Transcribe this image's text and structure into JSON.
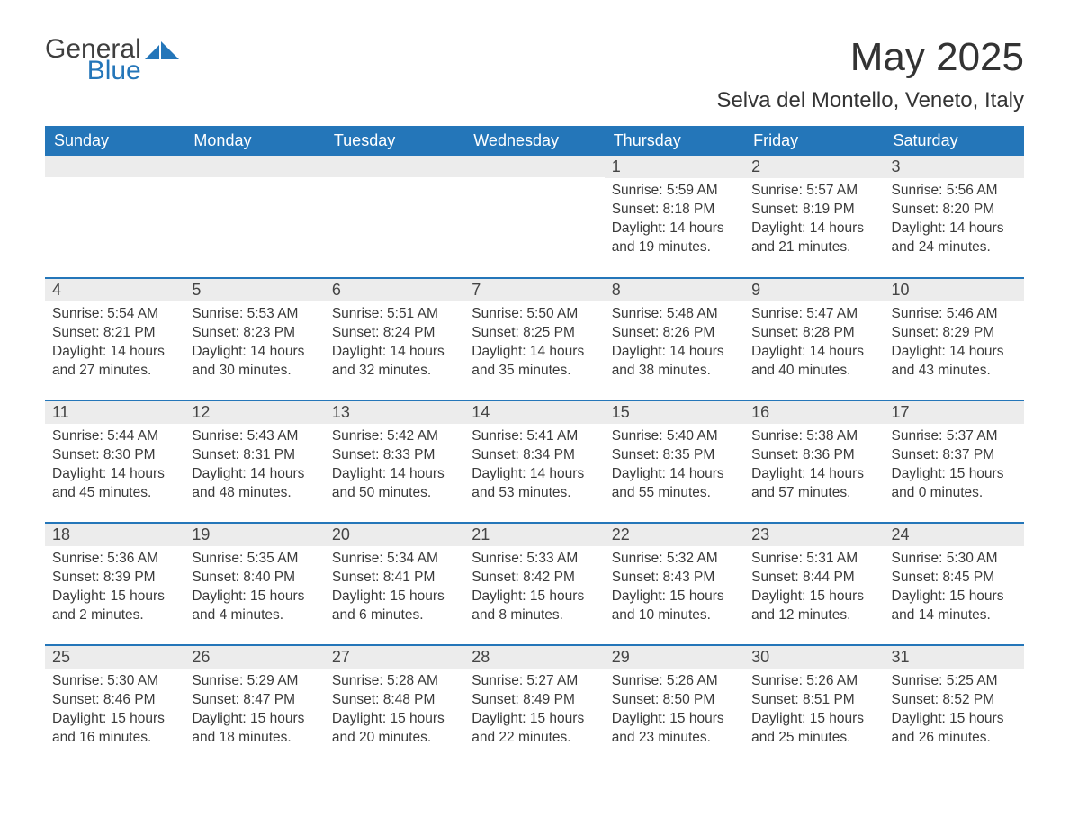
{
  "brand": {
    "text_top": "General",
    "text_bottom": "Blue",
    "mark_color": "#2476b9",
    "top_color": "#3f3f3f",
    "bottom_color": "#2476b9"
  },
  "title": "May 2025",
  "location": "Selva del Montello, Veneto, Italy",
  "colors": {
    "header_bg": "#2476b9",
    "header_fg": "#ffffff",
    "daynum_bg": "#ececec",
    "rule": "#2476b9",
    "body_text": "#3a3a3a"
  },
  "weekdays": [
    "Sunday",
    "Monday",
    "Tuesday",
    "Wednesday",
    "Thursday",
    "Friday",
    "Saturday"
  ],
  "weeks": [
    [
      {
        "n": "",
        "sr": "",
        "ss": "",
        "dl": ""
      },
      {
        "n": "",
        "sr": "",
        "ss": "",
        "dl": ""
      },
      {
        "n": "",
        "sr": "",
        "ss": "",
        "dl": ""
      },
      {
        "n": "",
        "sr": "",
        "ss": "",
        "dl": ""
      },
      {
        "n": "1",
        "sr": "Sunrise: 5:59 AM",
        "ss": "Sunset: 8:18 PM",
        "dl": "Daylight: 14 hours and 19 minutes."
      },
      {
        "n": "2",
        "sr": "Sunrise: 5:57 AM",
        "ss": "Sunset: 8:19 PM",
        "dl": "Daylight: 14 hours and 21 minutes."
      },
      {
        "n": "3",
        "sr": "Sunrise: 5:56 AM",
        "ss": "Sunset: 8:20 PM",
        "dl": "Daylight: 14 hours and 24 minutes."
      }
    ],
    [
      {
        "n": "4",
        "sr": "Sunrise: 5:54 AM",
        "ss": "Sunset: 8:21 PM",
        "dl": "Daylight: 14 hours and 27 minutes."
      },
      {
        "n": "5",
        "sr": "Sunrise: 5:53 AM",
        "ss": "Sunset: 8:23 PM",
        "dl": "Daylight: 14 hours and 30 minutes."
      },
      {
        "n": "6",
        "sr": "Sunrise: 5:51 AM",
        "ss": "Sunset: 8:24 PM",
        "dl": "Daylight: 14 hours and 32 minutes."
      },
      {
        "n": "7",
        "sr": "Sunrise: 5:50 AM",
        "ss": "Sunset: 8:25 PM",
        "dl": "Daylight: 14 hours and 35 minutes."
      },
      {
        "n": "8",
        "sr": "Sunrise: 5:48 AM",
        "ss": "Sunset: 8:26 PM",
        "dl": "Daylight: 14 hours and 38 minutes."
      },
      {
        "n": "9",
        "sr": "Sunrise: 5:47 AM",
        "ss": "Sunset: 8:28 PM",
        "dl": "Daylight: 14 hours and 40 minutes."
      },
      {
        "n": "10",
        "sr": "Sunrise: 5:46 AM",
        "ss": "Sunset: 8:29 PM",
        "dl": "Daylight: 14 hours and 43 minutes."
      }
    ],
    [
      {
        "n": "11",
        "sr": "Sunrise: 5:44 AM",
        "ss": "Sunset: 8:30 PM",
        "dl": "Daylight: 14 hours and 45 minutes."
      },
      {
        "n": "12",
        "sr": "Sunrise: 5:43 AM",
        "ss": "Sunset: 8:31 PM",
        "dl": "Daylight: 14 hours and 48 minutes."
      },
      {
        "n": "13",
        "sr": "Sunrise: 5:42 AM",
        "ss": "Sunset: 8:33 PM",
        "dl": "Daylight: 14 hours and 50 minutes."
      },
      {
        "n": "14",
        "sr": "Sunrise: 5:41 AM",
        "ss": "Sunset: 8:34 PM",
        "dl": "Daylight: 14 hours and 53 minutes."
      },
      {
        "n": "15",
        "sr": "Sunrise: 5:40 AM",
        "ss": "Sunset: 8:35 PM",
        "dl": "Daylight: 14 hours and 55 minutes."
      },
      {
        "n": "16",
        "sr": "Sunrise: 5:38 AM",
        "ss": "Sunset: 8:36 PM",
        "dl": "Daylight: 14 hours and 57 minutes."
      },
      {
        "n": "17",
        "sr": "Sunrise: 5:37 AM",
        "ss": "Sunset: 8:37 PM",
        "dl": "Daylight: 15 hours and 0 minutes."
      }
    ],
    [
      {
        "n": "18",
        "sr": "Sunrise: 5:36 AM",
        "ss": "Sunset: 8:39 PM",
        "dl": "Daylight: 15 hours and 2 minutes."
      },
      {
        "n": "19",
        "sr": "Sunrise: 5:35 AM",
        "ss": "Sunset: 8:40 PM",
        "dl": "Daylight: 15 hours and 4 minutes."
      },
      {
        "n": "20",
        "sr": "Sunrise: 5:34 AM",
        "ss": "Sunset: 8:41 PM",
        "dl": "Daylight: 15 hours and 6 minutes."
      },
      {
        "n": "21",
        "sr": "Sunrise: 5:33 AM",
        "ss": "Sunset: 8:42 PM",
        "dl": "Daylight: 15 hours and 8 minutes."
      },
      {
        "n": "22",
        "sr": "Sunrise: 5:32 AM",
        "ss": "Sunset: 8:43 PM",
        "dl": "Daylight: 15 hours and 10 minutes."
      },
      {
        "n": "23",
        "sr": "Sunrise: 5:31 AM",
        "ss": "Sunset: 8:44 PM",
        "dl": "Daylight: 15 hours and 12 minutes."
      },
      {
        "n": "24",
        "sr": "Sunrise: 5:30 AM",
        "ss": "Sunset: 8:45 PM",
        "dl": "Daylight: 15 hours and 14 minutes."
      }
    ],
    [
      {
        "n": "25",
        "sr": "Sunrise: 5:30 AM",
        "ss": "Sunset: 8:46 PM",
        "dl": "Daylight: 15 hours and 16 minutes."
      },
      {
        "n": "26",
        "sr": "Sunrise: 5:29 AM",
        "ss": "Sunset: 8:47 PM",
        "dl": "Daylight: 15 hours and 18 minutes."
      },
      {
        "n": "27",
        "sr": "Sunrise: 5:28 AM",
        "ss": "Sunset: 8:48 PM",
        "dl": "Daylight: 15 hours and 20 minutes."
      },
      {
        "n": "28",
        "sr": "Sunrise: 5:27 AM",
        "ss": "Sunset: 8:49 PM",
        "dl": "Daylight: 15 hours and 22 minutes."
      },
      {
        "n": "29",
        "sr": "Sunrise: 5:26 AM",
        "ss": "Sunset: 8:50 PM",
        "dl": "Daylight: 15 hours and 23 minutes."
      },
      {
        "n": "30",
        "sr": "Sunrise: 5:26 AM",
        "ss": "Sunset: 8:51 PM",
        "dl": "Daylight: 15 hours and 25 minutes."
      },
      {
        "n": "31",
        "sr": "Sunrise: 5:25 AM",
        "ss": "Sunset: 8:52 PM",
        "dl": "Daylight: 15 hours and 26 minutes."
      }
    ]
  ]
}
